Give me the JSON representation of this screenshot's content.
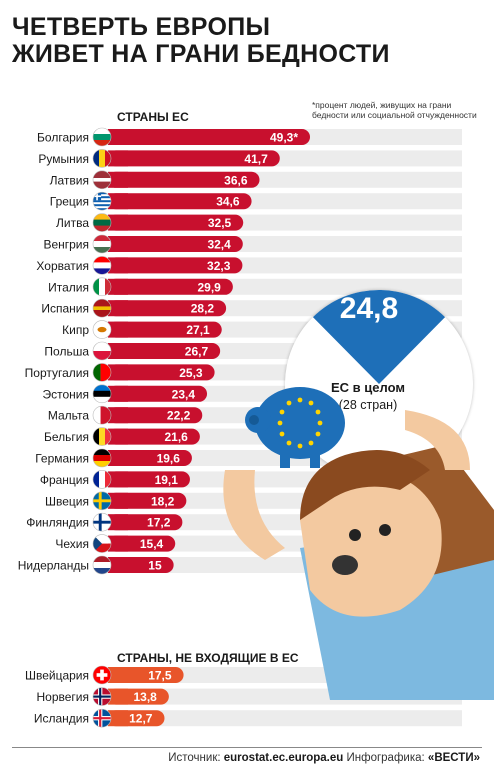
{
  "title_line1": "ЧЕТВЕРТЬ ЕВРОПЫ",
  "title_line2": "ЖИВЕТ НА ГРАНИ БЕДНОСТИ",
  "footnote": "*процент людей, живущих на грани бедности или социальной отчужденности",
  "eu_section_label": "СТРАНЫ ЕС",
  "non_eu_section_label": "СТРАНЫ, НЕ ВХОДЯЩИЕ В ЕС",
  "eu_average": {
    "value": "24,8",
    "label": "ЕС в целом",
    "sublabel": "(28 стран)",
    "fraction": 0.248
  },
  "source": {
    "prefix": "Источник:",
    "site": "eurostat.ec.europa.eu",
    "infographic_prefix": "Инфографика:",
    "publisher": "«ВЕСТИ»"
  },
  "colors": {
    "eu_bar": "#c8102e",
    "non_eu_bar": "#e8552a",
    "track": "#ececec",
    "avg_wedge": "#1e6fb8"
  },
  "chart_data": [
    {
      "type": "bar",
      "orientation": "horizontal",
      "group": "СТРАНЫ ЕС",
      "categories": [
        "Болгария",
        "Румыния",
        "Латвия",
        "Греция",
        "Литва",
        "Венгрия",
        "Хорватия",
        "Италия",
        "Испания",
        "Кипр",
        "Польша",
        "Португалия",
        "Эстония",
        "Мальта",
        "Бельгия",
        "Германия",
        "Франция",
        "Швеция",
        "Финляндия",
        "Чехия",
        "Нидерланды"
      ],
      "values": [
        49.3,
        41.7,
        36.6,
        34.6,
        32.5,
        32.4,
        32.3,
        29.9,
        28.2,
        27.1,
        26.7,
        25.3,
        23.4,
        22.2,
        21.6,
        19.6,
        19.1,
        18.2,
        17.2,
        15.4,
        15
      ],
      "value_labels": [
        "49,3*",
        "41,7",
        "36,6",
        "34,6",
        "32,5",
        "32,4",
        "32,3",
        "29,9",
        "28,2",
        "27,1",
        "26,7",
        "25,3",
        "23,4",
        "22,2",
        "21,6",
        "19,6",
        "19,1",
        "18,2",
        "17,2",
        "15,4",
        "15"
      ],
      "flags": [
        "flag-bulgaria",
        "flag-romania",
        "flag-latvia",
        "flag-greece",
        "flag-lithuania",
        "flag-hungary",
        "flag-croatia",
        "flag-italy",
        "flag-spain",
        "flag-cyprus",
        "flag-poland",
        "flag-portugal",
        "flag-estonia",
        "flag-malta",
        "flag-belgium",
        "flag-germany",
        "flag-france",
        "flag-sweden",
        "flag-finland",
        "flag-czechia",
        "flag-netherlands"
      ]
    },
    {
      "type": "bar",
      "orientation": "horizontal",
      "group": "СТРАНЫ, НЕ ВХОДЯЩИЕ В ЕС",
      "categories": [
        "Швейцария",
        "Норвегия",
        "Исландия"
      ],
      "values": [
        17.5,
        13.8,
        12.7
      ],
      "value_labels": [
        "17,5",
        "13,8",
        "12,7"
      ],
      "flags": [
        "flag-switzerland",
        "flag-norway",
        "flag-iceland"
      ]
    }
  ]
}
